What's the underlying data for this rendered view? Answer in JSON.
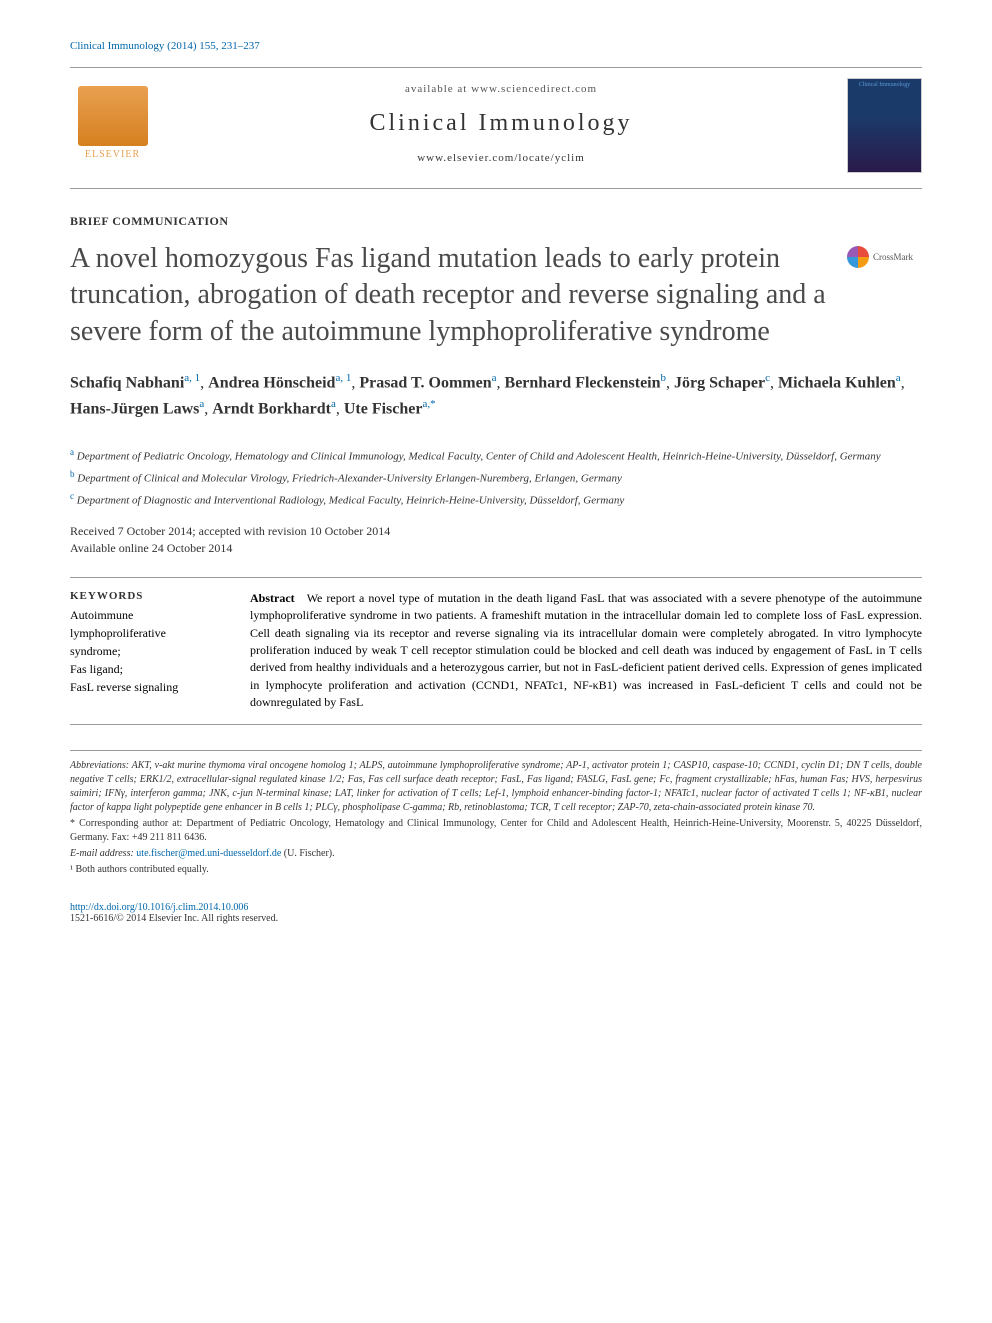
{
  "citation": "Clinical Immunology (2014) 155, 231–237",
  "header": {
    "available_at": "available at www.sciencedirect.com",
    "journal_name": "Clinical Immunology",
    "journal_url": "www.elsevier.com/locate/yclim",
    "elsevier_label": "ELSEVIER",
    "cover_label": "Clinical Immunology"
  },
  "article_type": "BRIEF COMMUNICATION",
  "title": "A novel homozygous Fas ligand mutation leads to early protein truncation, abrogation of death receptor and reverse signaling and a severe form of the autoimmune lymphoproliferative syndrome",
  "crossmark_label": "CrossMark",
  "authors": [
    {
      "name": "Schafiq Nabhani",
      "sup": "a, 1"
    },
    {
      "name": "Andrea Hönscheid",
      "sup": "a, 1"
    },
    {
      "name": "Prasad T. Oommen",
      "sup": "a"
    },
    {
      "name": "Bernhard Fleckenstein",
      "sup": "b"
    },
    {
      "name": "Jörg Schaper",
      "sup": "c"
    },
    {
      "name": "Michaela Kuhlen",
      "sup": "a"
    },
    {
      "name": "Hans-Jürgen Laws",
      "sup": "a"
    },
    {
      "name": "Arndt Borkhardt",
      "sup": "a"
    },
    {
      "name": "Ute Fischer",
      "sup": "a,*"
    }
  ],
  "affiliations": [
    {
      "letter": "a",
      "text": "Department of Pediatric Oncology, Hematology and Clinical Immunology, Medical Faculty, Center of Child and Adolescent Health, Heinrich-Heine-University, Düsseldorf, Germany"
    },
    {
      "letter": "b",
      "text": "Department of Clinical and Molecular Virology, Friedrich-Alexander-University Erlangen-Nuremberg, Erlangen, Germany"
    },
    {
      "letter": "c",
      "text": "Department of Diagnostic and Interventional Radiology, Medical Faculty, Heinrich-Heine-University, Düsseldorf, Germany"
    }
  ],
  "dates": {
    "received": "Received 7 October 2014; accepted with revision 10 October 2014",
    "available": "Available online 24 October 2014"
  },
  "keywords": {
    "heading": "KEYWORDS",
    "items": [
      "Autoimmune",
      "lymphoproliferative",
      "syndrome;",
      "Fas ligand;",
      "FasL reverse signaling"
    ]
  },
  "abstract": {
    "label": "Abstract",
    "text": "We report a novel type of mutation in the death ligand FasL that was associated with a severe phenotype of the autoimmune lymphoproliferative syndrome in two patients. A frameshift mutation in the intracellular domain led to complete loss of FasL expression. Cell death signaling via its receptor and reverse signaling via its intracellular domain were completely abrogated. In vitro lymphocyte proliferation induced by weak T cell receptor stimulation could be blocked and cell death was induced by engagement of FasL in T cells derived from healthy individuals and a heterozygous carrier, but not in FasL-deficient patient derived cells. Expression of genes implicated in lymphocyte proliferation and activation (CCND1, NFATc1, NF-κB1) was increased in FasL-deficient T cells and could not be downregulated by FasL"
  },
  "footnotes": {
    "abbreviations": "Abbreviations: AKT, v-akt murine thymoma viral oncogene homolog 1; ALPS, autoimmune lymphoproliferative syndrome; AP-1, activator protein 1; CASP10, caspase-10; CCND1, cyclin D1; DN T cells, double negative T cells; ERK1/2, extracellular-signal regulated kinase 1/2; Fas, Fas cell surface death receptor; FasL, Fas ligand; FASLG, FasL gene; Fc, fragment crystallizable; hFas, human Fas; HVS, herpesvirus saimiri; IFNγ, interferon gamma; JNK, c-jun N-terminal kinase; LAT, linker for activation of T cells; Lef-1, lymphoid enhancer-binding factor-1; NFATc1, nuclear factor of activated T cells 1; NF-κB1, nuclear factor of kappa light polypeptide gene enhancer in B cells 1; PLCγ, phospholipase C-gamma; Rb, retinoblastoma; TCR, T cell receptor; ZAP-70, zeta-chain-associated protein kinase 70.",
    "corresponding": "* Corresponding author at: Department of Pediatric Oncology, Hematology and Clinical Immunology, Center for Child and Adolescent Health, Heinrich-Heine-University, Moorenstr. 5, 40225 Düsseldorf, Germany. Fax: +49 211 811 6436.",
    "email_label": "E-mail address: ",
    "email": "ute.fischer@med.uni-duesseldorf.de",
    "email_author": " (U. Fischer).",
    "equal": "¹ Both authors contributed equally."
  },
  "doi": "http://dx.doi.org/10.1016/j.clim.2014.10.006",
  "copyright": "1521-6616/© 2014 Elsevier Inc. All rights reserved."
}
